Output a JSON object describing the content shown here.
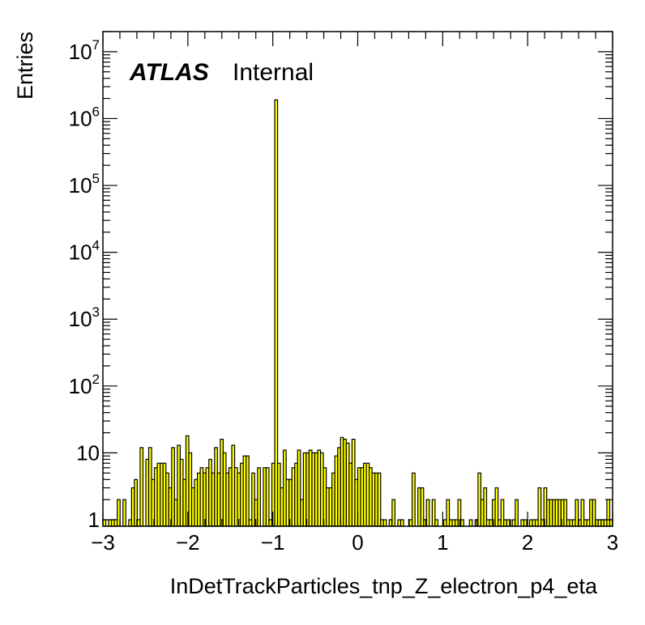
{
  "chart_data": {
    "type": "bar",
    "style": "histogram-step",
    "fill_color": "#ffff00",
    "line_color": "#000000",
    "xlabel": "InDetTrackParticles_tnp_Z_electron_p4_eta",
    "ylabel": "Entries",
    "label_bold_italic": "ATLAS",
    "label_normal": "Internal",
    "xlim": [
      -3,
      3
    ],
    "ylim": [
      0.8,
      20000000
    ],
    "yscale": "log",
    "x_ticks": [
      -3,
      -2,
      -1,
      0,
      1,
      2,
      3
    ],
    "x_tick_labels": [
      "−3",
      "−2",
      "−1",
      "0",
      "1",
      "2",
      "3"
    ],
    "y_ticks": [
      {
        "value": 1,
        "base": "1",
        "exp": ""
      },
      {
        "value": 10,
        "base": "10",
        "exp": ""
      },
      {
        "value": 100,
        "base": "10",
        "exp": "2"
      },
      {
        "value": 1000,
        "base": "10",
        "exp": "3"
      },
      {
        "value": 10000,
        "base": "10",
        "exp": "4"
      },
      {
        "value": 100000,
        "base": "10",
        "exp": "5"
      },
      {
        "value": 1000000,
        "base": "10",
        "exp": "6"
      },
      {
        "value": 10000000,
        "base": "10",
        "exp": "7"
      }
    ],
    "bin_edges_start": -3,
    "bin_width": 0.1,
    "values": [
      1,
      0,
      1,
      1,
      1,
      2,
      0,
      2,
      0,
      1,
      3,
      4,
      1,
      12,
      0,
      8,
      12,
      4,
      6,
      7,
      7,
      7,
      5,
      3,
      12,
      2,
      13,
      8,
      4,
      18,
      10,
      3,
      4,
      5,
      6,
      5,
      6,
      8,
      5,
      12,
      5,
      16,
      10,
      5,
      6,
      13,
      6,
      5,
      7,
      9,
      9,
      1,
      5,
      2,
      6,
      0,
      6,
      6,
      1,
      7,
      1900000,
      7,
      3,
      11,
      4,
      4,
      6,
      7,
      11,
      2,
      10,
      10,
      11,
      10,
      10,
      11,
      10,
      6,
      3,
      3,
      5,
      9,
      12,
      17,
      16,
      14,
      7,
      16,
      4,
      6,
      6,
      7,
      7,
      6,
      5,
      5,
      5,
      1,
      1,
      0,
      1,
      2,
      0,
      1,
      1,
      0,
      0,
      1,
      5,
      0,
      3,
      3,
      1,
      2,
      0,
      2,
      1,
      0,
      0,
      1,
      2,
      1,
      1,
      1,
      2,
      1,
      0,
      0,
      1,
      0,
      1,
      5,
      2,
      3,
      1,
      1,
      2,
      3,
      1,
      2,
      1,
      1,
      0,
      1,
      2,
      0,
      1,
      1,
      0,
      1,
      1,
      1,
      3,
      1,
      3,
      2,
      2,
      2,
      2,
      2,
      2,
      2,
      1,
      1,
      1,
      2,
      1,
      2,
      1,
      1,
      2,
      2,
      1,
      1,
      1,
      1,
      2,
      1
    ]
  }
}
